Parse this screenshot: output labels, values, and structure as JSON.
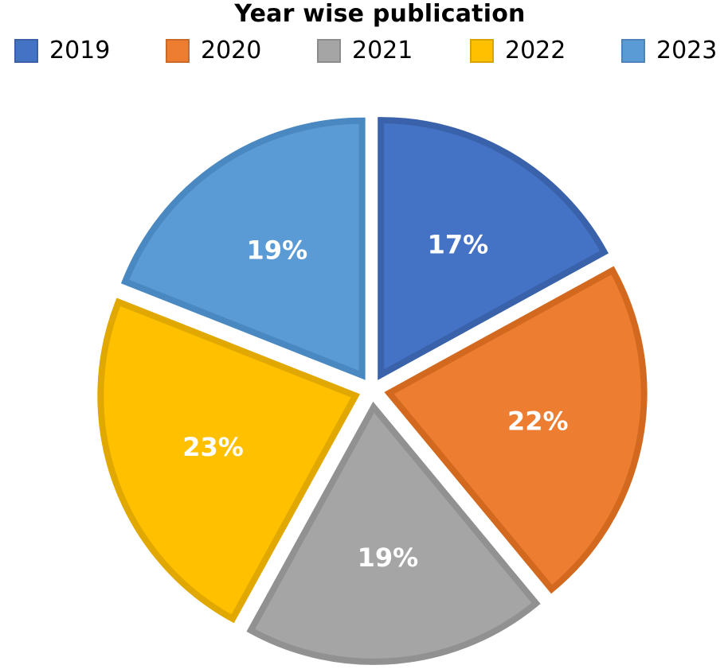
{
  "chart_data": {
    "type": "pie",
    "title": "Year wise publication",
    "legend_position": "top",
    "categories": [
      "2019",
      "2020",
      "2021",
      "2022",
      "2023"
    ],
    "values": [
      17,
      22,
      19,
      23,
      19
    ],
    "value_labels": [
      "17%",
      "22%",
      "19%",
      "23%",
      "19%"
    ],
    "colors": [
      "#4472C4",
      "#ED7D31",
      "#A5A5A5",
      "#FFC000",
      "#5B9BD5"
    ],
    "border_colors": [
      "#3A62AA",
      "#D2691F",
      "#919191",
      "#E0A800",
      "#4A88C2"
    ],
    "exploded": true
  }
}
